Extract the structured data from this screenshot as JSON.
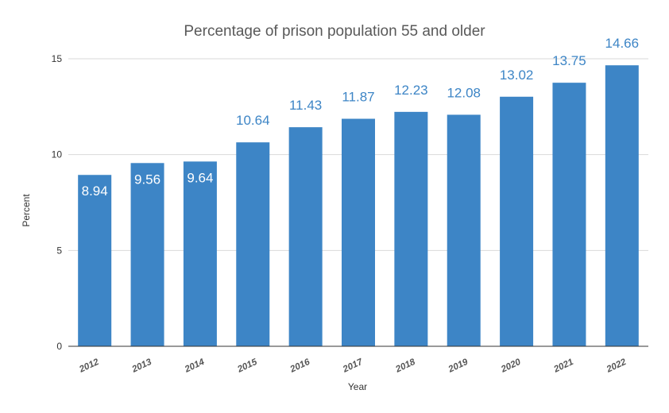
{
  "chart_data": {
    "type": "bar",
    "title": "Percentage of prison population 55 and older",
    "xlabel": "Year",
    "ylabel": "Percent",
    "ylim": [
      0,
      15
    ],
    "yticks": [
      0,
      5,
      10,
      15
    ],
    "grid": true,
    "legend": "none",
    "categories": [
      "2012",
      "2013",
      "2014",
      "2015",
      "2016",
      "2017",
      "2018",
      "2019",
      "2020",
      "2021",
      "2022"
    ],
    "values": [
      8.94,
      9.56,
      9.64,
      10.64,
      11.43,
      11.87,
      12.23,
      12.08,
      13.02,
      13.75,
      14.66
    ],
    "value_labels": [
      "8.94",
      "9.56",
      "9.64",
      "10.64",
      "11.43",
      "11.87",
      "12.23",
      "12.08",
      "13.02",
      "13.75",
      "14.66"
    ],
    "colors": {
      "bar": "#3d85c6",
      "label_inside": "#ffffff",
      "label_outside": "#3d85c6",
      "grid": "#d9d9d9",
      "axis": "#333333"
    }
  }
}
